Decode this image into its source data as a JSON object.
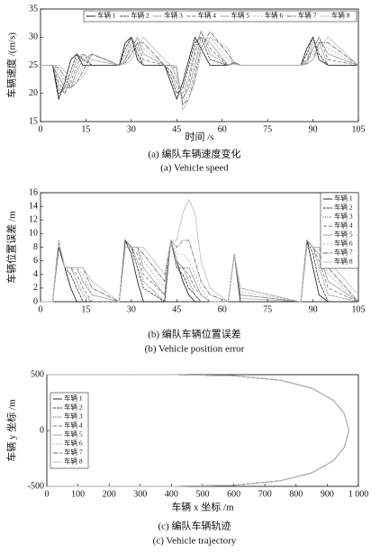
{
  "chart_data": [
    {
      "type": "line",
      "caption_zh": "(a) 编队车辆速度变化",
      "caption_en": "(a) Vehicle speed",
      "x_label": "时间 /s",
      "y_label": "车辆速度 /(m/s)",
      "legend": "top",
      "xlim": [
        0,
        105
      ],
      "xticks": [
        0,
        15,
        30,
        45,
        60,
        75,
        90,
        105
      ],
      "ylim": [
        15,
        35
      ],
      "yticks": [
        15,
        20,
        25,
        30,
        35
      ],
      "x": [
        0,
        4,
        6,
        8,
        10,
        12,
        14,
        17,
        26,
        28,
        30,
        32,
        34,
        41,
        43,
        45,
        47,
        49,
        51,
        53,
        56,
        62,
        64,
        66,
        86,
        88,
        90,
        92,
        95,
        105
      ],
      "series": [
        {
          "name": "车辆 1",
          "color": "#111111",
          "values": [
            25,
            25,
            19,
            22,
            26,
            27,
            25,
            25,
            25,
            29,
            30,
            26,
            25,
            25,
            22,
            19,
            22,
            26,
            30,
            28,
            25,
            25,
            25.5,
            25,
            25,
            28,
            30,
            26,
            25,
            25
          ]
        },
        {
          "name": "车辆 2",
          "color": "#333333",
          "values": [
            25,
            25,
            20,
            21,
            24,
            27,
            26,
            25,
            25,
            28,
            30,
            27,
            25,
            25,
            23,
            20,
            21,
            25,
            29,
            30,
            26,
            25,
            25.5,
            25,
            25,
            27,
            30,
            27,
            25,
            25
          ]
        },
        {
          "name": "车辆 3",
          "color": "#555555",
          "values": [
            25,
            25,
            21,
            20,
            23,
            26,
            27,
            25,
            25,
            27,
            30,
            28,
            25,
            25,
            24,
            21,
            20,
            23,
            28,
            31,
            27,
            25,
            25.4,
            25,
            25,
            26,
            29,
            29,
            25,
            25
          ]
        },
        {
          "name": "车辆 4",
          "color": "#777777",
          "values": [
            25,
            25,
            22,
            20,
            22,
            25,
            27,
            26,
            25,
            26,
            29,
            29,
            26,
            25,
            24,
            22,
            19,
            22,
            27,
            31,
            28,
            25,
            25.4,
            25,
            25,
            26,
            28,
            30,
            26,
            25
          ]
        },
        {
          "name": "车辆 5",
          "color": "#999999",
          "values": [
            25,
            25,
            23,
            21,
            21,
            24,
            26,
            27,
            25,
            26,
            28,
            30,
            27,
            25,
            25,
            23,
            19,
            21,
            25,
            30,
            29,
            25,
            25.3,
            25,
            25,
            25.5,
            28,
            30,
            27,
            25
          ]
        },
        {
          "name": "车辆 6",
          "color": "#aaaaaa",
          "values": [
            25,
            25,
            24,
            22,
            21,
            23,
            25,
            27,
            25,
            25.5,
            27,
            30,
            28,
            25,
            25,
            24,
            18,
            20,
            24,
            29,
            30,
            26,
            25.3,
            25,
            25,
            25.5,
            27,
            29,
            28,
            25
          ]
        },
        {
          "name": "车辆 7",
          "color": "#666666",
          "values": [
            25,
            25,
            24.5,
            23,
            21,
            22,
            24,
            27,
            25,
            25.5,
            27,
            29,
            29,
            25,
            25,
            24.5,
            18,
            19,
            23,
            28,
            31,
            27,
            25.2,
            25,
            25,
            25.3,
            26,
            29,
            29,
            25
          ]
        },
        {
          "name": "车辆 8",
          "color": "#bbbbbb",
          "values": [
            25,
            25,
            25,
            24,
            22,
            22,
            23,
            26,
            25,
            25.2,
            26,
            28,
            30,
            26,
            25,
            25,
            17,
            19,
            22,
            27,
            30,
            28,
            25.2,
            25,
            25,
            25.2,
            26,
            28,
            30,
            25
          ]
        }
      ]
    },
    {
      "type": "line",
      "caption_zh": "(b) 编队车辆位置误差",
      "caption_en": "(b) Vehicle position error",
      "x_label": "",
      "y_label": "车辆位置误差 /m",
      "legend": "upper right",
      "xlim": [
        0,
        105
      ],
      "xticks": [
        0,
        15,
        30,
        45,
        60,
        75,
        90,
        105
      ],
      "ylim": [
        0,
        16
      ],
      "yticks": [
        0,
        2,
        4,
        6,
        8,
        10,
        12,
        14,
        16
      ],
      "x": [
        0,
        4,
        6,
        8,
        10,
        12,
        14,
        17,
        26,
        28,
        30,
        32,
        34,
        41,
        43,
        45,
        47,
        49,
        51,
        53,
        56,
        62,
        64,
        66,
        86,
        88,
        90,
        92,
        95,
        105
      ],
      "series": [
        {
          "name": "车辆 1",
          "color": "#111111",
          "values": [
            0,
            0,
            8,
            5,
            2,
            0,
            0,
            0,
            0,
            9,
            7,
            3,
            0,
            0,
            9,
            6,
            3,
            1,
            0,
            0,
            0,
            0,
            7,
            0,
            0,
            9,
            5,
            1,
            0,
            0
          ]
        },
        {
          "name": "车辆 2",
          "color": "#333333",
          "values": [
            0,
            0,
            9,
            5,
            4,
            2,
            0,
            0,
            0,
            9,
            8,
            5,
            2,
            0,
            9,
            5,
            4,
            2,
            1,
            0,
            0,
            0,
            7,
            0,
            0,
            9,
            7,
            3,
            0,
            0
          ]
        },
        {
          "name": "车辆 3",
          "color": "#555555",
          "values": [
            0,
            0,
            9,
            5,
            5,
            3,
            1,
            0,
            0,
            9,
            8,
            6,
            3,
            0,
            9,
            5,
            5,
            3,
            1,
            0,
            0,
            0,
            7,
            0.5,
            0,
            9,
            8,
            5,
            1,
            0
          ]
        },
        {
          "name": "车辆 4",
          "color": "#777777",
          "values": [
            0,
            0,
            9,
            5,
            5,
            4,
            2,
            0,
            0,
            8,
            8,
            7,
            4,
            1,
            9,
            5,
            5,
            4,
            2,
            1,
            0,
            0,
            7,
            1,
            0,
            9,
            8,
            6,
            2,
            0
          ]
        },
        {
          "name": "车辆 5",
          "color": "#999999",
          "values": [
            0,
            0,
            9,
            5,
            5,
            5,
            3,
            1,
            0,
            8,
            8,
            8,
            5,
            1,
            9,
            6,
            5,
            5,
            3,
            1,
            0,
            0,
            7,
            1,
            0,
            9,
            8,
            7,
            3,
            0
          ]
        },
        {
          "name": "车辆 6",
          "color": "#aaaaaa",
          "values": [
            0,
            0,
            9,
            5,
            5,
            5,
            4,
            1,
            0,
            8,
            8,
            8,
            6,
            2,
            9,
            7,
            7,
            6,
            4,
            2,
            0,
            0,
            7,
            1.5,
            0,
            8,
            8,
            8,
            4,
            0
          ]
        },
        {
          "name": "车辆 7",
          "color": "#666666",
          "values": [
            0,
            0,
            9,
            5,
            5,
            5,
            5,
            2,
            0,
            8,
            8,
            8,
            7,
            3,
            9,
            8,
            9,
            9,
            6,
            3,
            1,
            0,
            7,
            2,
            0,
            8,
            8,
            8,
            5,
            0
          ]
        },
        {
          "name": "车辆 8",
          "color": "#bbbbbb",
          "values": [
            0,
            0,
            9,
            5,
            5,
            5,
            5,
            3,
            0,
            8,
            8,
            8,
            8,
            4,
            9,
            9,
            13,
            15,
            13,
            6,
            2,
            0,
            7,
            2,
            0,
            8,
            8,
            8,
            6,
            1
          ]
        }
      ]
    },
    {
      "type": "line",
      "caption_zh": "(c) 编队车辆轨迹",
      "caption_en": "(c) Vehicle trajectory",
      "x_label": "车辆 x 坐标 /m",
      "y_label": "车辆 y 坐标 /m",
      "legend": "left",
      "xlim": [
        0,
        1000
      ],
      "xticks": [
        0,
        100,
        200,
        300,
        400,
        500,
        600,
        700,
        800,
        900,
        {
          "value": 1000,
          "label": "1 000"
        }
      ],
      "ylim": [
        -500,
        500
      ],
      "yticks": [
        -500,
        0,
        500
      ],
      "x": [
        0,
        200,
        400,
        600,
        750,
        850,
        920,
        955,
        970,
        955,
        920,
        850,
        750,
        600,
        400,
        200,
        0
      ],
      "series": [
        {
          "name": "车辆 1",
          "color": "#111111",
          "values": [
            500,
            500,
            500,
            490,
            450,
            380,
            270,
            150,
            0,
            -150,
            -270,
            -380,
            -450,
            -490,
            -500,
            -500,
            -500
          ]
        },
        {
          "name": "车辆 2",
          "color": "#333333",
          "values": [
            500,
            500,
            500,
            490,
            450,
            380,
            270,
            150,
            0,
            -150,
            -270,
            -380,
            -450,
            -490,
            -500,
            -500,
            -500
          ]
        },
        {
          "name": "车辆 3",
          "color": "#555555",
          "values": [
            500,
            500,
            500,
            490,
            450,
            380,
            270,
            150,
            0,
            -150,
            -270,
            -380,
            -450,
            -490,
            -500,
            -500,
            -500
          ]
        },
        {
          "name": "车辆 4",
          "color": "#777777",
          "values": [
            500,
            500,
            500,
            490,
            450,
            380,
            270,
            150,
            0,
            -150,
            -270,
            -380,
            -450,
            -490,
            -500,
            -500,
            -500
          ]
        },
        {
          "name": "车辆 5",
          "color": "#999999",
          "values": [
            500,
            500,
            500,
            490,
            450,
            380,
            270,
            150,
            0,
            -150,
            -270,
            -380,
            -450,
            -490,
            -500,
            -500,
            -500
          ]
        },
        {
          "name": "车辆 6",
          "color": "#aaaaaa",
          "values": [
            500,
            500,
            500,
            490,
            450,
            380,
            270,
            150,
            0,
            -150,
            -270,
            -380,
            -450,
            -490,
            -500,
            -500,
            -500
          ]
        },
        {
          "name": "车辆 7",
          "color": "#666666",
          "values": [
            500,
            500,
            500,
            490,
            450,
            380,
            270,
            150,
            0,
            -150,
            -270,
            -380,
            -450,
            -490,
            -500,
            -500,
            -500
          ]
        },
        {
          "name": "车辆 8",
          "color": "#bbbbbb",
          "values": [
            500,
            500,
            500,
            490,
            450,
            380,
            270,
            150,
            0,
            -150,
            -270,
            -380,
            -450,
            -490,
            -500,
            -500,
            -500
          ]
        }
      ]
    }
  ]
}
